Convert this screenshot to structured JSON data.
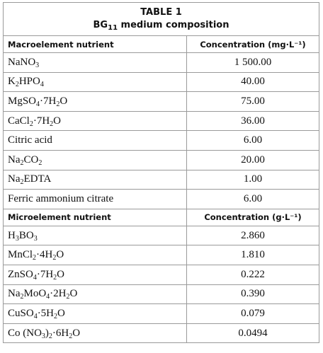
{
  "table": {
    "label": "TABLE 1",
    "caption": [
      {
        "text": "BG"
      },
      {
        "sub": "11"
      },
      {
        "text": " medium composition"
      }
    ],
    "sections": [
      {
        "header": [
          "Macroelement nutrient",
          "Concentration (mg·L⁻¹)"
        ],
        "rows": [
          {
            "nutrient": [
              {
                "text": "NaNO"
              },
              {
                "sub": "3"
              }
            ],
            "concentration": "1 500.00"
          },
          {
            "nutrient": [
              {
                "text": "K"
              },
              {
                "sub": "2"
              },
              {
                "text": "HPO"
              },
              {
                "sub": "4"
              }
            ],
            "concentration": "40.00"
          },
          {
            "nutrient": [
              {
                "text": "MgSO"
              },
              {
                "sub": "4"
              },
              {
                "text": "·7H"
              },
              {
                "sub": "2"
              },
              {
                "text": "O"
              }
            ],
            "concentration": "75.00"
          },
          {
            "nutrient": [
              {
                "text": "CaCl"
              },
              {
                "sub": "2"
              },
              {
                "text": "·7H"
              },
              {
                "sub": "2"
              },
              {
                "text": "O"
              }
            ],
            "concentration": "36.00"
          },
          {
            "nutrient": [
              {
                "text": "Citric acid"
              }
            ],
            "concentration": "6.00"
          },
          {
            "nutrient": [
              {
                "text": "Na"
              },
              {
                "sub": "2"
              },
              {
                "text": "CO"
              },
              {
                "sub": "2"
              }
            ],
            "concentration": "20.00"
          },
          {
            "nutrient": [
              {
                "text": "Na"
              },
              {
                "sub": "2"
              },
              {
                "text": "EDTA"
              }
            ],
            "concentration": "1.00"
          },
          {
            "nutrient": [
              {
                "text": "Ferric ammonium citrate"
              }
            ],
            "concentration": "6.00"
          }
        ]
      },
      {
        "header": [
          "Microelement nutrient",
          "Concentration (g·L⁻¹)"
        ],
        "rows": [
          {
            "nutrient": [
              {
                "text": "H"
              },
              {
                "sub": "3"
              },
              {
                "text": "BO"
              },
              {
                "sub": "3"
              }
            ],
            "concentration": "2.860"
          },
          {
            "nutrient": [
              {
                "text": "MnCl"
              },
              {
                "sub": "2"
              },
              {
                "text": "·4H"
              },
              {
                "sub": "2"
              },
              {
                "text": "O"
              }
            ],
            "concentration": "1.810"
          },
          {
            "nutrient": [
              {
                "text": "ZnSO"
              },
              {
                "sub": "4"
              },
              {
                "text": "·7H"
              },
              {
                "sub": "2"
              },
              {
                "text": "O"
              }
            ],
            "concentration": "0.222"
          },
          {
            "nutrient": [
              {
                "text": "Na"
              },
              {
                "sub": "2"
              },
              {
                "text": "MoO"
              },
              {
                "sub": "4"
              },
              {
                "text": "·2H"
              },
              {
                "sub": "2"
              },
              {
                "text": "O"
              }
            ],
            "concentration": "0.390"
          },
          {
            "nutrient": [
              {
                "text": "CuSO"
              },
              {
                "sub": "4"
              },
              {
                "text": "·5H"
              },
              {
                "sub": "2"
              },
              {
                "text": "O"
              }
            ],
            "concentration": "0.079"
          },
          {
            "nutrient": [
              {
                "text": "Co (NO"
              },
              {
                "sub": "3"
              },
              {
                "text": ")"
              },
              {
                "sub": "2"
              },
              {
                "text": "·6H"
              },
              {
                "sub": "2"
              },
              {
                "text": "O"
              }
            ],
            "concentration": "0.0494"
          }
        ]
      }
    ]
  }
}
